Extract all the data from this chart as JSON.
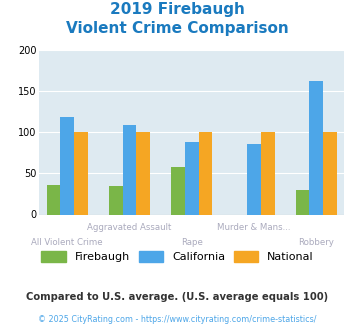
{
  "title_line1": "2019 Firebaugh",
  "title_line2": "Violent Crime Comparison",
  "title_color": "#1a7abf",
  "categories": [
    "All Violent Crime",
    "Aggravated Assault",
    "Rape",
    "Murder & Mans...",
    "Robbery"
  ],
  "top_labels": [
    "",
    "Aggravated Assault",
    "",
    "Murder & Mans...",
    ""
  ],
  "bottom_labels": [
    "All Violent Crime",
    "",
    "Rape",
    "",
    "Robbery"
  ],
  "firebaugh": [
    36,
    35,
    57,
    0,
    30
  ],
  "california": [
    118,
    108,
    88,
    86,
    162
  ],
  "national": [
    100,
    100,
    100,
    100,
    100
  ],
  "firebaugh_color": "#7ab648",
  "california_color": "#4da6e8",
  "national_color": "#f5a623",
  "bg_color": "#deeaf1",
  "ylim": [
    0,
    200
  ],
  "yticks": [
    0,
    50,
    100,
    150,
    200
  ],
  "bar_width": 0.22,
  "legend_labels": [
    "Firebaugh",
    "California",
    "National"
  ],
  "footnote1": "Compared to U.S. average. (U.S. average equals 100)",
  "footnote2": "© 2025 CityRating.com - https://www.cityrating.com/crime-statistics/",
  "footnote1_color": "#333333",
  "footnote2_color": "#4da6e8",
  "label_color": "#aaaabd"
}
